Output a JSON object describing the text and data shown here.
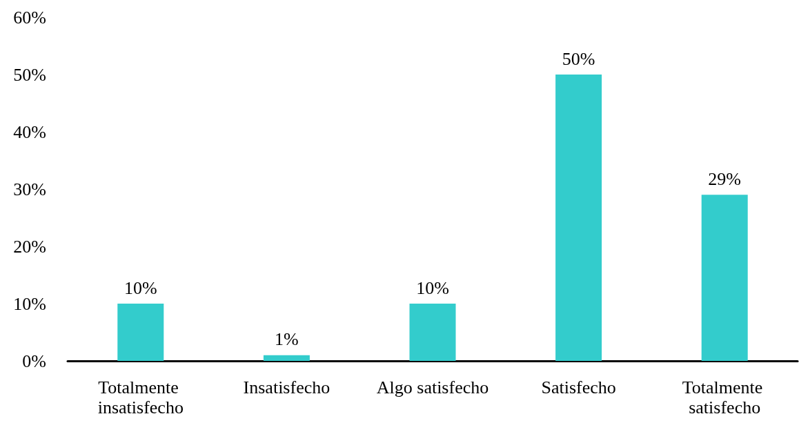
{
  "chart_data": {
    "type": "bar",
    "categories": [
      "Totalmente insatisfecho",
      "Insatisfecho",
      "Algo satisfecho",
      "Satisfecho",
      "Totalmente satisfecho"
    ],
    "values": [
      10,
      1,
      10,
      50,
      29
    ],
    "color": "#33cccc",
    "value_labels": [
      "10%",
      "1%",
      "10%",
      "50%",
      "29%"
    ],
    "ylim": [
      0,
      60
    ],
    "yticks": [
      {
        "value": 0,
        "label": "0%"
      },
      {
        "value": 10,
        "label": "10%"
      },
      {
        "value": 20,
        "label": "20%"
      },
      {
        "value": 30,
        "label": "30%"
      },
      {
        "value": 40,
        "label": "40%"
      },
      {
        "value": 50,
        "label": "50%"
      },
      {
        "value": 60,
        "label": "60%"
      }
    ],
    "grid": false
  }
}
